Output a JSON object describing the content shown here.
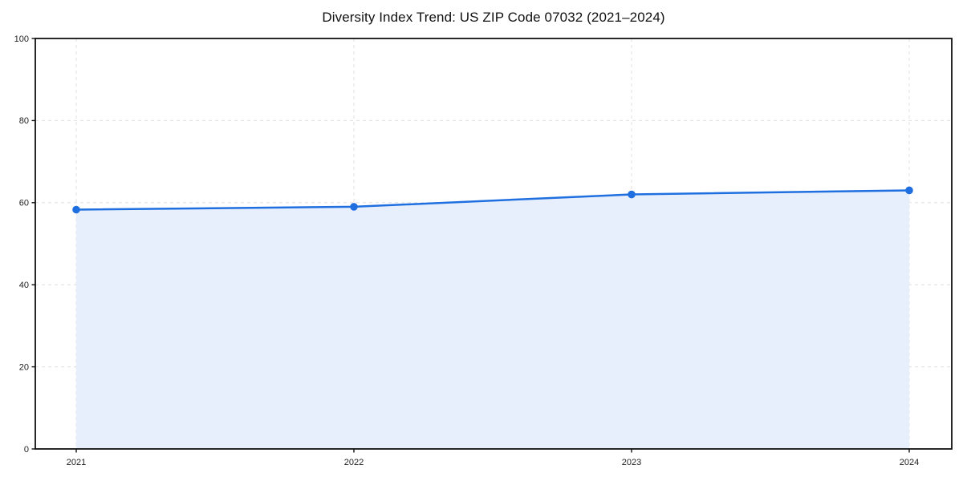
{
  "chart_data": {
    "type": "area",
    "title": "Diversity Index Trend: US ZIP Code 07032 (2021–2024)",
    "x": [
      2021,
      2022,
      2023,
      2024
    ],
    "xticks": [
      "2021",
      "2022",
      "2023",
      "2024"
    ],
    "series": [
      {
        "name": "Diversity Index",
        "values": [
          58.3,
          59,
          62,
          63
        ]
      }
    ],
    "xlabel": "",
    "ylabel": "",
    "ylim": [
      0,
      100
    ],
    "yticks": [
      0,
      20,
      40,
      60,
      80,
      100
    ],
    "grid": "dashed",
    "legend": "none",
    "marker": "circle",
    "colors": {
      "line": "#1f6fe0",
      "fill": "#e7effc",
      "grid": "#e0e0e0",
      "spine": "#111111",
      "tick_label": "#222222",
      "title": "#111111",
      "background": "#ffffff"
    }
  }
}
